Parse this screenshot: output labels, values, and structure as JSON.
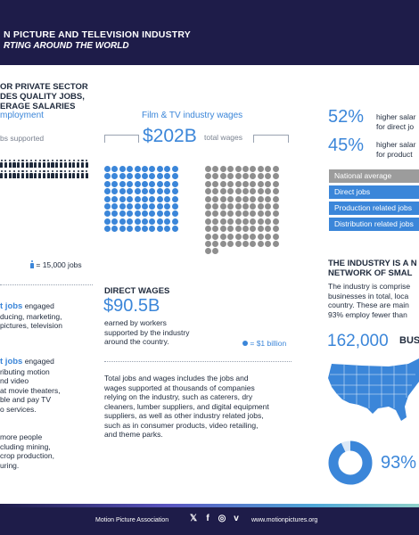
{
  "header": {
    "title": "N PICTURE AND TELEVISION INDUSTRY",
    "subtitle": "RTING AROUND THE WORLD"
  },
  "left": {
    "heading_lines": [
      "OR PRIVATE SECTOR",
      "DES QUALITY JOBS,",
      "ERAGE SALARIES"
    ],
    "employment_title": "mployment",
    "jobs_supported_label": "bs supported",
    "legend": "= 15,000 jobs",
    "para1_bold": "t jobs",
    "para1_rest": " engaged",
    "para1_lines": [
      "ducing, marketing,",
      "pictures, television"
    ],
    "para2_bold": "t jobs",
    "para2_rest": " engaged",
    "para2_lines": [
      "ributing motion",
      "nd video",
      "at movie theaters,",
      "ble and pay TV",
      "o services."
    ],
    "para3_lines": [
      "more people",
      "cluding mining,",
      "crop production,",
      "uring."
    ]
  },
  "middle": {
    "wages_title": "Film & TV industry wages",
    "total_value": "$202B",
    "total_label": "total wages",
    "direct_title": "DIRECT WAGES",
    "direct_value": "$90.5B",
    "direct_desc": [
      "earned by workers",
      "supported by the industry",
      "around the country."
    ],
    "legend": "= $1 billion",
    "blue_dots": 90,
    "gray_dots": 112,
    "para": [
      "Total jobs and wages includes the jobs and",
      "wages supported at thousands of companies",
      "relying on the industry, such as caterers, dry",
      "cleaners, lumber suppliers, and digital equipment",
      "suppliers, as well as other industry related jobs,",
      "such as in consumer products, video retailing,",
      "and theme parks."
    ]
  },
  "right": {
    "stat1_value": "52%",
    "stat1_text": [
      "higher salar",
      "for direct jo"
    ],
    "stat2_value": "45%",
    "stat2_text": [
      "higher salar",
      "for product"
    ],
    "bars": [
      "National average",
      "Direct jobs",
      "Production related jobs",
      "Distribution related jobs"
    ],
    "network_heading": [
      "THE INDUSTRY IS A N",
      "NETWORK OF SMAL"
    ],
    "network_para": [
      "The industry is comprise",
      "businesses in total, loca",
      "country. These are main",
      "93% employ fewer than"
    ],
    "businesses_value": "162,000",
    "businesses_label": "BUS",
    "donut_value": "93%",
    "donut_fraction": 0.93
  },
  "footer": {
    "org": "Motion Picture Association",
    "site": "www.motionpictures.org",
    "icons": [
      "x-icon",
      "facebook-icon",
      "instagram-icon",
      "vimeo-icon"
    ]
  },
  "colors": {
    "navy": "#1e1c49",
    "accent_blue": "#3b86d9",
    "gray": "#8f8f8f"
  }
}
